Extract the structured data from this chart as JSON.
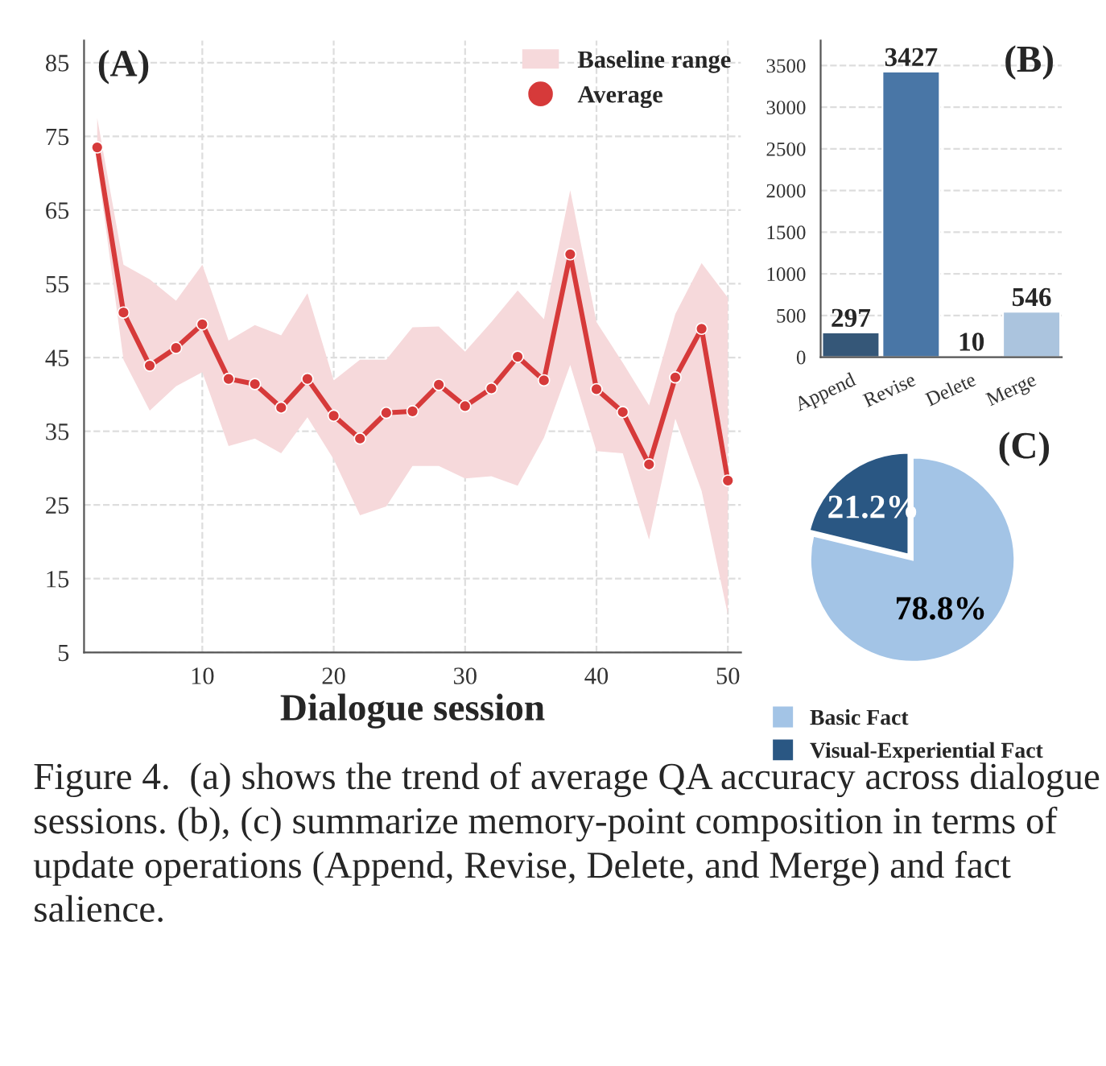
{
  "chart_data": [
    {
      "type": "line",
      "title": "(A)",
      "xlabel": "Dialogue session",
      "x": [
        2,
        4,
        6,
        8,
        10,
        12,
        14,
        16,
        18,
        20,
        22,
        24,
        26,
        28,
        30,
        32,
        34,
        36,
        38,
        40,
        42,
        44,
        46,
        48,
        50
      ],
      "series": [
        {
          "name": "Baseline range",
          "type": "area",
          "color": "#f6d9db",
          "values": [
            null,
            null,
            null,
            null,
            null,
            null,
            null,
            null,
            null,
            null,
            null,
            null,
            null,
            null,
            null,
            null,
            null,
            null,
            null,
            null,
            null,
            null,
            null,
            null,
            null
          ],
          "lower": [
            71.3,
            44.7,
            37.8,
            41.1,
            43.0,
            33.0,
            34.0,
            32.0,
            36.9,
            31.2,
            23.6,
            24.8,
            30.3,
            30.3,
            28.6,
            28.9,
            27.6,
            34.1,
            44.0,
            32.3,
            32.0,
            20.3,
            36.7,
            26.9,
            10.1
          ],
          "upper": [
            77.5,
            57.6,
            55.6,
            52.7,
            57.6,
            47.3,
            49.4,
            48.0,
            53.7,
            41.9,
            44.7,
            44.7,
            49.1,
            49.2,
            45.8,
            49.8,
            54.1,
            50.2,
            67.7,
            49.8,
            44.3,
            38.5,
            50.9,
            57.8,
            53.1
          ]
        },
        {
          "name": "Average",
          "type": "line",
          "color": "#d63a3a",
          "marker": "circle",
          "values": [
            73.5,
            51.1,
            43.9,
            46.3,
            49.5,
            42.1,
            41.4,
            38.2,
            42.1,
            37.1,
            34.0,
            37.5,
            37.7,
            41.3,
            38.4,
            40.8,
            45.1,
            41.9,
            59.0,
            40.7,
            37.6,
            30.5,
            42.3,
            48.9,
            28.3
          ]
        }
      ],
      "xlim": [
        1,
        51
      ],
      "ylim": [
        5,
        88
      ],
      "xticks": [
        10,
        20,
        30,
        40,
        50
      ],
      "yticks": [
        5,
        15,
        25,
        35,
        45,
        55,
        65,
        75,
        85
      ],
      "grid": true,
      "legend": "top right",
      "line_style": "solid",
      "annotations": [
        "Figure 4.  (a) shows the trend of average QA accuracy across dialogue sessions. (b), (c) summarize memory-point composition in terms of update operations (Append, Revise, Delete, and Merge) and fact salience."
      ]
    },
    {
      "type": "bar",
      "title": "(B)",
      "categories": [
        "Append",
        "Revise",
        "Delete",
        "Merge"
      ],
      "values": [
        297,
        3427,
        10,
        546
      ],
      "colors": [
        "#2a5783",
        "#3a76b5",
        "#6d9fd1",
        "#a3c4e6"
      ],
      "data_labels": true,
      "ylim": [
        0,
        3800
      ],
      "yticks": [
        0,
        500,
        1000,
        1500,
        2000,
        2500,
        3000,
        3500
      ],
      "grid": "y"
    },
    {
      "type": "pie",
      "title": "(C)",
      "categories": [
        "Basic Fact",
        "Visual-Experiential Fact"
      ],
      "values": [
        78.8,
        21.2
      ],
      "colors": [
        "#a3c4e6",
        "#2a5783"
      ],
      "value_labels": [
        "78.8%",
        "21.2%"
      ],
      "legend": "bottom"
    }
  ]
}
